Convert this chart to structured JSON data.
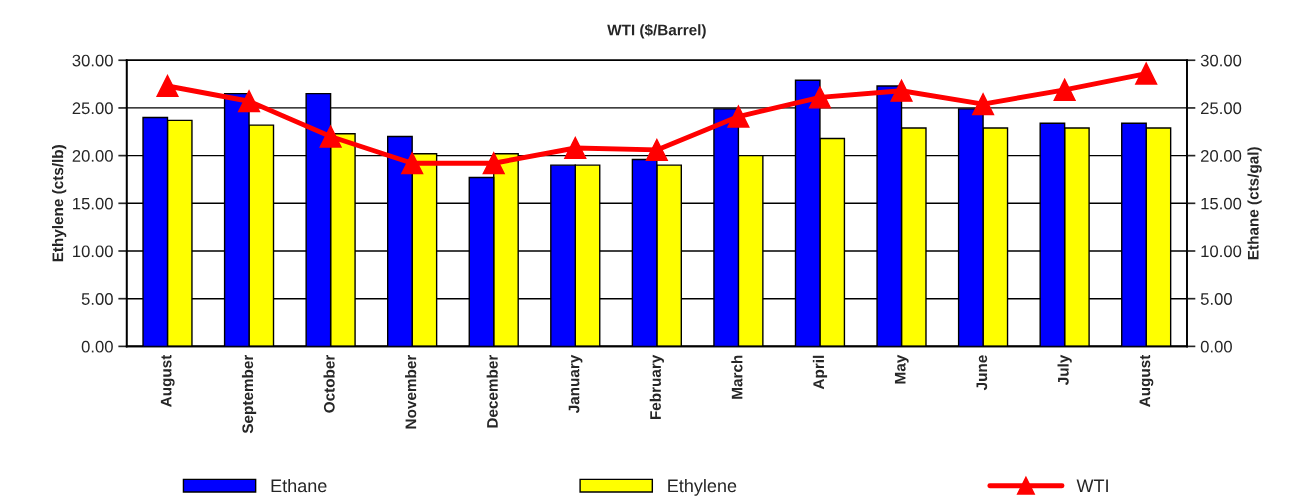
{
  "chart_data": {
    "type": "bar",
    "title": "WTI ($/Barrel)",
    "ylabel": "Ethylene (cts/lb)",
    "y2label": "Ethane (cts/gal)",
    "categories": [
      "August",
      "September",
      "October",
      "November",
      "December",
      "January",
      "February",
      "March",
      "April",
      "May",
      "June",
      "July",
      "August"
    ],
    "series": [
      {
        "name": "Ethane",
        "color": "#0000ff",
        "axis": "y2",
        "values": [
          24.0,
          26.5,
          26.5,
          22.0,
          17.7,
          19.0,
          19.6,
          24.9,
          27.9,
          27.3,
          24.9,
          23.4,
          23.4
        ]
      },
      {
        "name": "Ethylene",
        "color": "#ffff00",
        "values": [
          23.7,
          23.2,
          22.3,
          20.2,
          20.2,
          19.0,
          19.0,
          20.0,
          21.8,
          22.9,
          22.9,
          22.9,
          22.9
        ]
      },
      {
        "name": "WTI",
        "type": "line",
        "color": "#ff0000",
        "axis": "y2",
        "marker": "triangle",
        "values": [
          27.3,
          25.7,
          22.0,
          19.2,
          19.2,
          20.8,
          20.6,
          24.1,
          26.1,
          26.8,
          25.4,
          26.9,
          28.6
        ]
      }
    ],
    "ylim": [
      0,
      30
    ],
    "yticks": [
      {
        "value": 0,
        "label": "0.00"
      },
      {
        "value": 5,
        "label": "5.00"
      },
      {
        "value": 10,
        "label": "10.00"
      },
      {
        "value": 15,
        "label": "15.00"
      },
      {
        "value": 20,
        "label": "20.00"
      },
      {
        "value": 25,
        "label": "25.00"
      },
      {
        "value": 30,
        "label": "30.00"
      }
    ],
    "y2lim": [
      0,
      30
    ],
    "y2ticks": [
      {
        "value": 0,
        "label": "0.00"
      },
      {
        "value": 5,
        "label": "5.00"
      },
      {
        "value": 10,
        "label": "10.00"
      },
      {
        "value": 15,
        "label": "15.00"
      },
      {
        "value": 20,
        "label": "20.00"
      },
      {
        "value": 25,
        "label": "25.00"
      },
      {
        "value": 30,
        "label": "30.00"
      }
    ],
    "grid": "y",
    "legend": "bottom"
  }
}
